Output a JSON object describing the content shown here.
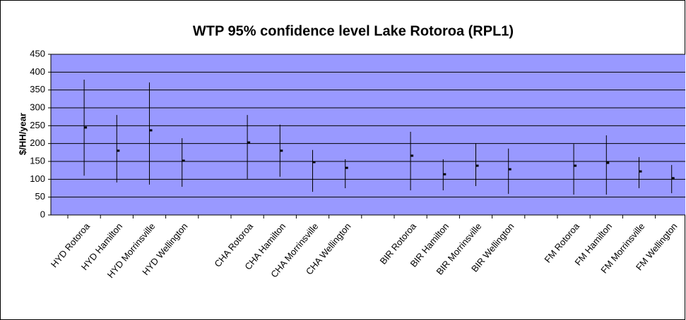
{
  "chart_data": {
    "type": "hilo",
    "title": "WTP 95% confidence level Lake Rotoroa (RPL1)",
    "y_label": "$/HH/year",
    "categories": [
      "HYD Rotoroa",
      "HYD Hamilton",
      "HYD Morrinsville",
      "HYD Wellington",
      null,
      "CHA Rotoroa",
      "CHA Hamilton",
      "CHA Morrinsville",
      "CHA Wellington",
      null,
      "BIR Rotoroa",
      "BIR Hamilton",
      "BIR Morrinsville",
      "BIR Wellington",
      null,
      "FM Rotoroa",
      "FM Hamilton",
      "FM Morrinsville",
      "FM Wellington"
    ],
    "high": [
      379,
      280,
      371,
      215,
      null,
      280,
      253,
      182,
      156,
      null,
      233,
      156,
      201,
      186,
      null,
      199,
      223,
      162,
      140
    ],
    "low": [
      110,
      91,
      85,
      79,
      null,
      101,
      107,
      65,
      75,
      null,
      69,
      69,
      81,
      59,
      null,
      57,
      57,
      75,
      61
    ],
    "close": [
      245,
      180,
      237,
      152,
      null,
      203,
      180,
      148,
      132,
      null,
      166,
      114,
      138,
      128,
      null,
      138,
      146,
      122,
      103
    ],
    "color": "#000000",
    "plot_background": "#9999ff",
    "ylim": [
      0,
      450
    ],
    "yticks": [
      0,
      50,
      100,
      150,
      200,
      250,
      300,
      350,
      400,
      450
    ],
    "grid": true
  }
}
